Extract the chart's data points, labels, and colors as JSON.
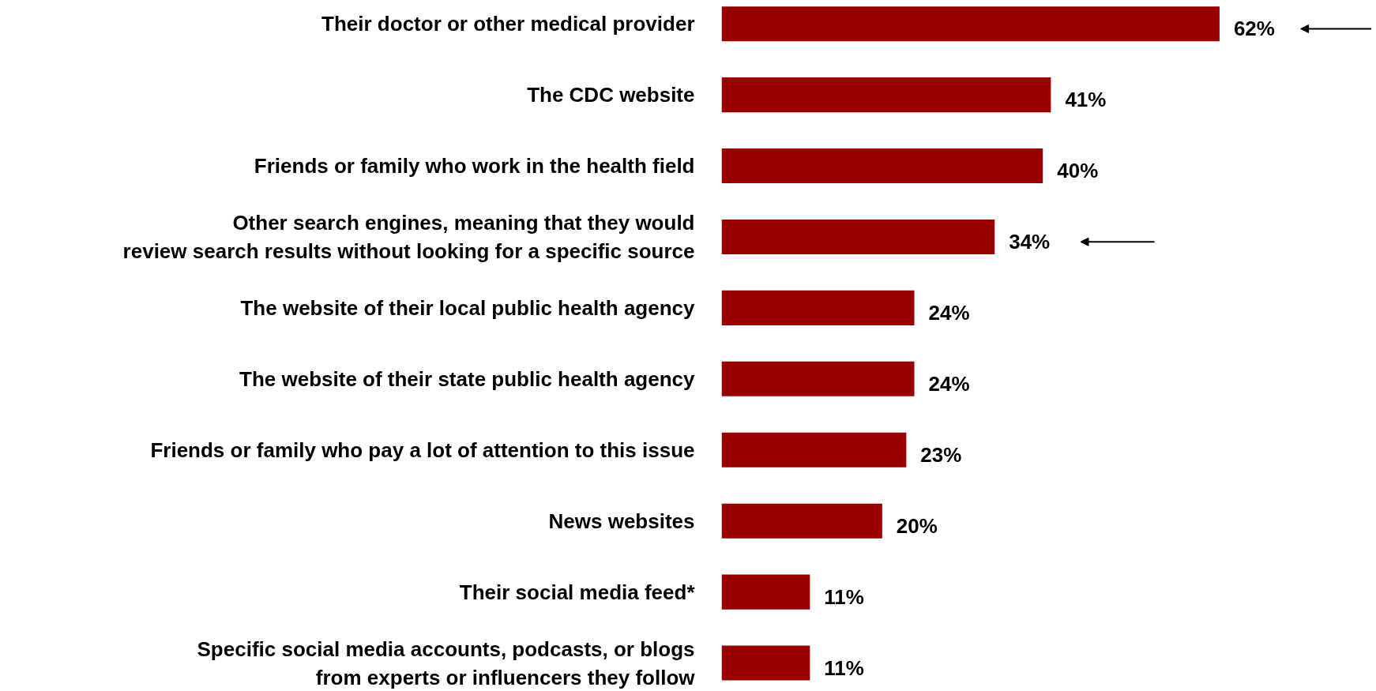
{
  "chart_data": {
    "type": "bar",
    "orientation": "horizontal",
    "categories": [
      "Their doctor or other medical provider",
      "The CDC website",
      "Friends or family who work in the health field",
      "Other search engines, meaning that they would\nreview search results without looking for a specific source",
      "The website of their local public health agency",
      "The website of their state public health agency",
      "Friends or family who pay a lot of attention to this issue",
      "News websites",
      "Their social media feed*",
      "Specific social media accounts, podcasts, or blogs\nfrom experts or influencers they follow"
    ],
    "values": [
      62,
      41,
      40,
      34,
      24,
      24,
      23,
      20,
      11,
      11
    ],
    "value_labels": [
      "62%",
      "41%",
      "40%",
      "34%",
      "24%",
      "24%",
      "23%",
      "20%",
      "11%",
      "11%"
    ],
    "color": "#990000",
    "grid": false
  }
}
